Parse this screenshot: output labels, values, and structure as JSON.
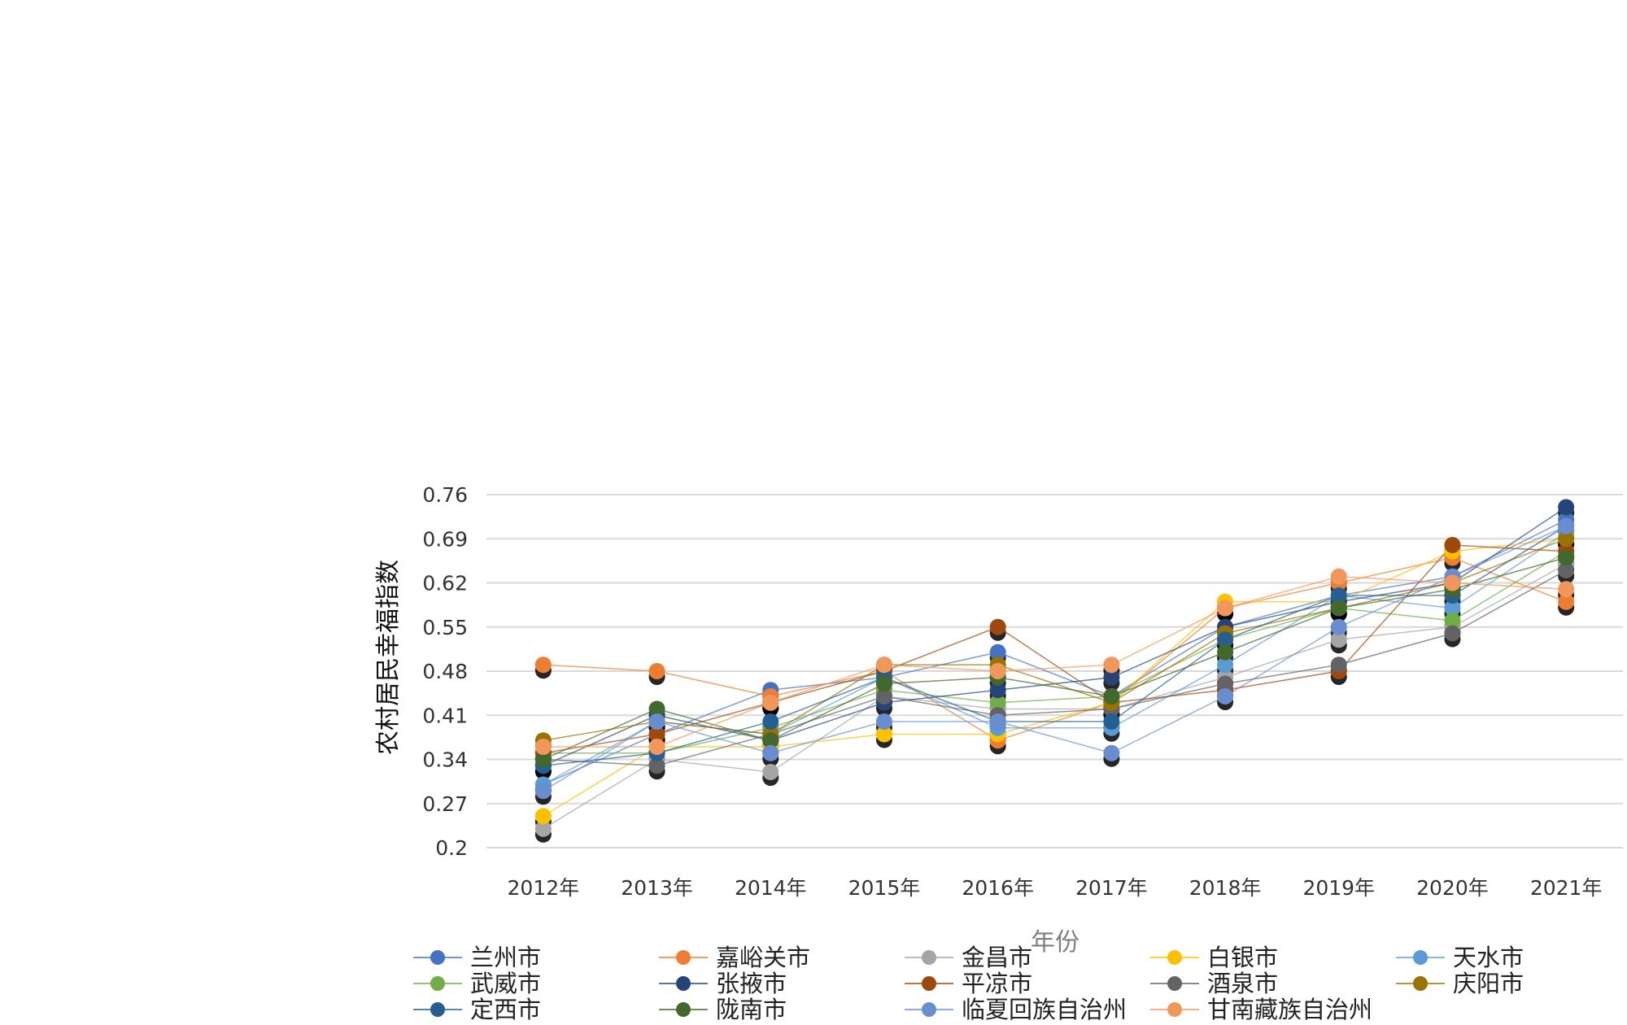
{
  "chart_data": {
    "type": "line",
    "title": "",
    "xlabel": "年份",
    "ylabel": "农村居民幸福指数",
    "categories": [
      "2012年",
      "2013年",
      "2014年",
      "2015年",
      "2016年",
      "2017年",
      "2018年",
      "2019年",
      "2020年",
      "2021年"
    ],
    "yticks": [
      "0.76",
      "0.69",
      "0.62",
      "0.55",
      "0.48",
      "0.41",
      "0.34",
      "0.27",
      "0.2"
    ],
    "ylim": [
      0.2,
      0.76
    ],
    "grid": true,
    "legend_position": "bottom",
    "series": [
      {
        "name": "兰州市",
        "color": "#4472C4",
        "values": [
          0.3,
          0.38,
          0.45,
          0.47,
          0.51,
          0.44,
          0.55,
          0.6,
          0.63,
          0.72
        ]
      },
      {
        "name": "嘉峪关市",
        "color": "#ED7D31",
        "values": [
          0.49,
          0.48,
          0.44,
          0.48,
          0.37,
          0.43,
          0.58,
          0.62,
          0.66,
          0.59
        ]
      },
      {
        "name": "金昌市",
        "color": "#A5A5A5",
        "values": [
          0.23,
          0.34,
          0.32,
          0.44,
          0.42,
          0.42,
          0.47,
          0.53,
          0.55,
          0.65
        ]
      },
      {
        "name": "白银市",
        "color": "#FFC000",
        "values": [
          0.25,
          0.36,
          0.36,
          0.38,
          0.38,
          0.43,
          0.59,
          0.59,
          0.67,
          0.69
        ]
      },
      {
        "name": "天水市",
        "color": "#5B9BD5",
        "values": [
          0.3,
          0.4,
          0.38,
          0.47,
          0.39,
          0.39,
          0.49,
          0.6,
          0.58,
          0.7
        ]
      },
      {
        "name": "武威市",
        "color": "#70AD47",
        "values": [
          0.35,
          0.35,
          0.39,
          0.45,
          0.43,
          0.44,
          0.53,
          0.58,
          0.56,
          0.67
        ]
      },
      {
        "name": "张掖市",
        "color": "#264478",
        "values": [
          0.33,
          0.41,
          0.37,
          0.43,
          0.45,
          0.47,
          0.55,
          0.59,
          0.62,
          0.74
        ]
      },
      {
        "name": "平凉市",
        "color": "#9E480E",
        "values": [
          0.35,
          0.38,
          0.43,
          0.48,
          0.55,
          0.43,
          0.45,
          0.48,
          0.68,
          0.67
        ]
      },
      {
        "name": "酒泉市",
        "color": "#636363",
        "values": [
          0.34,
          0.33,
          0.38,
          0.44,
          0.41,
          0.42,
          0.46,
          0.49,
          0.54,
          0.64
        ]
      },
      {
        "name": "庆阳市",
        "color": "#997300",
        "values": [
          0.37,
          0.4,
          0.38,
          0.49,
          0.49,
          0.43,
          0.54,
          0.58,
          0.62,
          0.69
        ]
      },
      {
        "name": "定西市",
        "color": "#255E91",
        "values": [
          0.33,
          0.35,
          0.4,
          0.47,
          0.4,
          0.4,
          0.53,
          0.6,
          0.6,
          0.71
        ]
      },
      {
        "name": "陇南市",
        "color": "#43682B",
        "values": [
          0.34,
          0.42,
          0.37,
          0.46,
          0.47,
          0.44,
          0.51,
          0.58,
          0.61,
          0.66
        ]
      },
      {
        "name": "临夏回族自治州",
        "color": "#698ED0",
        "values": [
          0.29,
          0.4,
          0.35,
          0.4,
          0.4,
          0.35,
          0.44,
          0.55,
          0.63,
          0.71
        ]
      },
      {
        "name": "甘南藏族自治州",
        "color": "#F1975A",
        "values": [
          0.36,
          0.36,
          0.43,
          0.49,
          0.48,
          0.49,
          0.58,
          0.63,
          0.62,
          0.61
        ]
      }
    ]
  }
}
